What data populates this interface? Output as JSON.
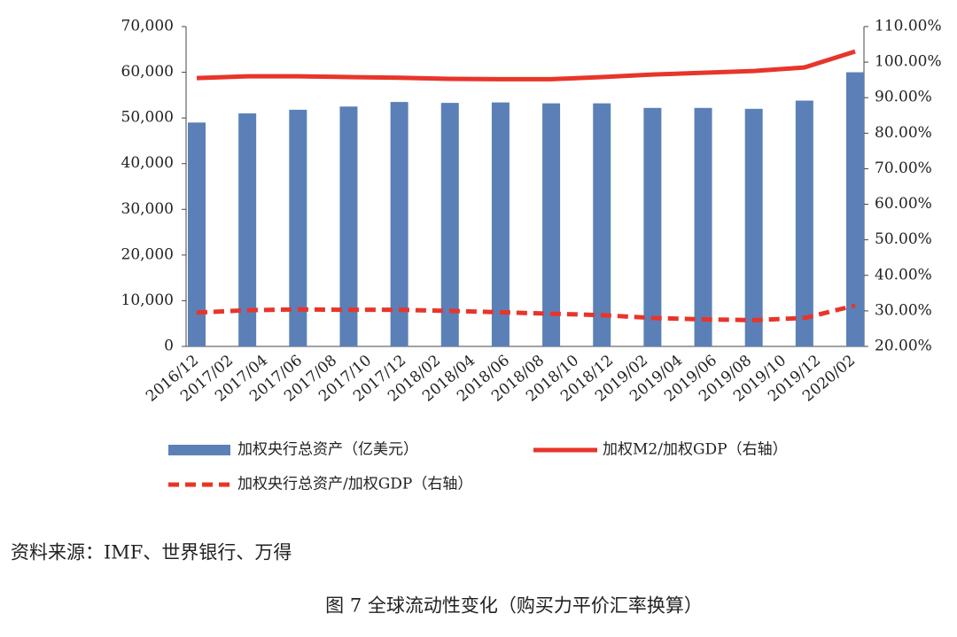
{
  "chart_data": {
    "type": "bar_line",
    "categories": [
      "2016/12",
      "2017/02",
      "2017/04",
      "2017/06",
      "2017/08",
      "2017/10",
      "2017/12",
      "2018/02",
      "2018/04",
      "2018/06",
      "2018/08",
      "2018/10",
      "2018/12",
      "2019/02"
    ],
    "tick_labels": [
      "2016/12",
      "2017/02",
      "2017/04",
      "2017/06",
      "2017/08",
      "2017/10",
      "2017/12",
      "2018/02",
      "2018/04",
      "2018/06",
      "2018/08",
      "2018/10",
      "2018/12",
      "2019/02",
      "2019/04",
      "2019/06",
      "2019/08",
      "2019/10",
      "2019/12",
      "2020/02"
    ],
    "series": [
      {
        "name": "加权央行总资产（亿美元）",
        "type": "bar",
        "color": "#5b80b8",
        "values": [
          49000,
          51000,
          51800,
          52500,
          53500,
          53300,
          53400,
          53200,
          53200,
          52200,
          52200,
          52000,
          53800,
          60000
        ]
      },
      {
        "name": "加权M2/加权GDP（右轴）",
        "type": "line",
        "axis": "y2",
        "color": "#e8352a",
        "dash": false,
        "values": [
          95.5,
          96,
          96,
          95.8,
          95.6,
          95.3,
          95.2,
          95.2,
          95.8,
          96.5,
          97,
          97.5,
          98.5,
          103
        ]
      },
      {
        "name": "加权央行总资产/加权GDP（右轴）",
        "type": "line",
        "axis": "y2",
        "color": "#e8352a",
        "dash": true,
        "values": [
          29.5,
          30.2,
          30.4,
          30.3,
          30.3,
          30,
          29.6,
          29.2,
          28.8,
          28,
          27.6,
          27.4,
          28,
          31.5
        ]
      }
    ],
    "ylim": [
      0,
      70000
    ],
    "yticks": [
      0,
      {
        "value": 10000,
        "label": "10,000"
      },
      {
        "value": 20000,
        "label": "20,000"
      },
      {
        "value": 30000,
        "label": "30,000"
      },
      {
        "value": 40000,
        "label": "40,000"
      },
      {
        "value": 50000,
        "label": "50,000"
      },
      {
        "value": 60000,
        "label": "60,000"
      },
      {
        "value": 70000,
        "label": "70,000"
      }
    ],
    "y2lim": [
      20,
      110
    ],
    "y2ticks": [
      {
        "value": 20,
        "label": "20.00%"
      },
      {
        "value": 30,
        "label": "30.00%"
      },
      {
        "value": 40,
        "label": "40.00%"
      },
      {
        "value": 50,
        "label": "50.00%"
      },
      {
        "value": 60,
        "label": "60.00%"
      },
      {
        "value": 70,
        "label": "70.00%"
      },
      {
        "value": 80,
        "label": "80.00%"
      },
      {
        "value": 90,
        "label": "90.00%"
      },
      {
        "value": 100,
        "label": "100.00%"
      },
      {
        "value": 110,
        "label": "110.00%"
      }
    ],
    "source": "资料来源：IMF、世界银行、万得",
    "caption": "图 7 全球流动性变化（购买力平价汇率换算）"
  }
}
